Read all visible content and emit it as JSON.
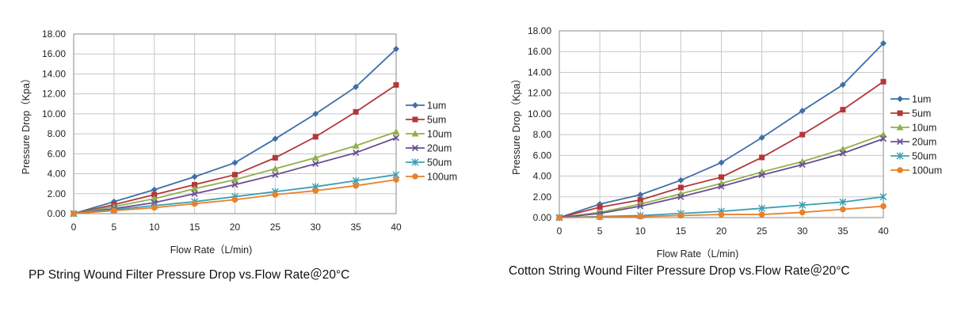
{
  "chart_data": [
    {
      "type": "line",
      "title": "PP String Wound Filter Pressure Drop vs.Flow Rate＠20°C",
      "xlabel": "Flow Rate（L/min)",
      "ylabel": "Pressure Drop（Kpa）",
      "x": [
        0,
        5,
        10,
        15,
        20,
        25,
        30,
        35,
        40
      ],
      "x_tick_labels": [
        "0",
        "5",
        "10",
        "15",
        "20",
        "25",
        "30",
        "35",
        "40"
      ],
      "xlim": [
        0,
        40
      ],
      "ylim": [
        0,
        18
      ],
      "y_tick_labels": [
        "0.00",
        "2.00",
        "4.00",
        "6.00",
        "8.00",
        "10.00",
        "12.00",
        "14.00",
        "16.00",
        "18.00"
      ],
      "grid": true,
      "legend": "right",
      "series": [
        {
          "name": "1um",
          "color": "#3e6fa8",
          "marker": "diamond",
          "values": [
            0,
            1.2,
            2.4,
            3.7,
            5.1,
            7.5,
            10.0,
            12.7,
            16.5
          ]
        },
        {
          "name": "5um",
          "color": "#b3373a",
          "marker": "square",
          "values": [
            0,
            0.9,
            1.9,
            2.9,
            3.9,
            5.6,
            7.7,
            10.2,
            12.9
          ]
        },
        {
          "name": "10um",
          "color": "#8fb04a",
          "marker": "triangle",
          "values": [
            0,
            0.7,
            1.5,
            2.5,
            3.4,
            4.5,
            5.6,
            6.8,
            8.2
          ]
        },
        {
          "name": "20um",
          "color": "#6b4c94",
          "marker": "x",
          "values": [
            0,
            0.5,
            1.1,
            2.0,
            2.9,
            3.9,
            5.0,
            6.1,
            7.6
          ]
        },
        {
          "name": "50um",
          "color": "#3a9fb3",
          "marker": "star",
          "values": [
            0,
            0.4,
            0.8,
            1.2,
            1.7,
            2.2,
            2.7,
            3.3,
            3.9
          ]
        },
        {
          "name": "100um",
          "color": "#e8812c",
          "marker": "circle",
          "values": [
            0,
            0.3,
            0.6,
            1.0,
            1.4,
            1.9,
            2.3,
            2.8,
            3.4
          ]
        }
      ]
    },
    {
      "type": "line",
      "title": "Cotton String Wound Filter Pressure Drop vs.Flow Rate＠20°C",
      "xlabel": "Flow Rate（L/min)",
      "ylabel": "Pressure Drop（Kpa）",
      "x": [
        0,
        5,
        10,
        15,
        20,
        25,
        30,
        35,
        40
      ],
      "x_tick_labels": [
        "0",
        "5",
        "10",
        "15",
        "20",
        "25",
        "30",
        "35",
        "40"
      ],
      "xlim": [
        0,
        40
      ],
      "ylim": [
        0,
        18
      ],
      "y_tick_labels": [
        "0.00",
        "2.00",
        "4.00",
        "6.00",
        "8.00",
        "10.00",
        "12.00",
        "14.00",
        "16.00",
        "18.00"
      ],
      "grid": true,
      "legend": "right",
      "series": [
        {
          "name": "1um",
          "color": "#3e6fa8",
          "marker": "diamond",
          "values": [
            0,
            1.3,
            2.2,
            3.6,
            5.3,
            7.7,
            10.3,
            12.8,
            16.8
          ]
        },
        {
          "name": "5um",
          "color": "#b3373a",
          "marker": "square",
          "values": [
            0,
            1.0,
            1.7,
            2.9,
            3.9,
            5.8,
            8.0,
            10.4,
            13.1
          ]
        },
        {
          "name": "10um",
          "color": "#8fb04a",
          "marker": "triangle",
          "values": [
            0,
            0.5,
            1.3,
            2.3,
            3.3,
            4.4,
            5.4,
            6.6,
            8.0
          ]
        },
        {
          "name": "20um",
          "color": "#6b4c94",
          "marker": "x",
          "values": [
            0,
            0.4,
            1.1,
            2.0,
            3.0,
            4.1,
            5.1,
            6.2,
            7.6
          ]
        },
        {
          "name": "50um",
          "color": "#3a9fb3",
          "marker": "star",
          "values": [
            0,
            0.1,
            0.2,
            0.4,
            0.6,
            0.9,
            1.2,
            1.5,
            2.0
          ]
        },
        {
          "name": "100um",
          "color": "#e8812c",
          "marker": "circle",
          "values": [
            0,
            0.05,
            0.1,
            0.2,
            0.3,
            0.3,
            0.5,
            0.8,
            1.1
          ]
        }
      ]
    }
  ]
}
